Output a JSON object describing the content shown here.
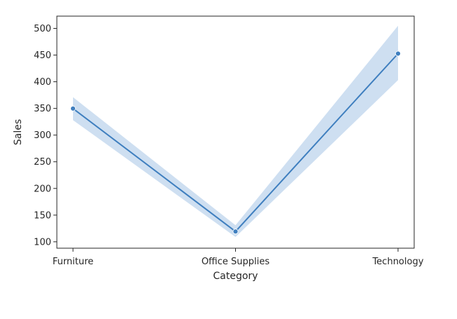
{
  "chart_data": {
    "type": "line",
    "title": "",
    "xlabel": "Category",
    "ylabel": "Sales",
    "categories": [
      "Furniture",
      "Office Supplies",
      "Technology"
    ],
    "series": [
      {
        "values": [
          349.8,
          119.3,
          452.7
        ],
        "ci_lower": [
          328,
          109,
          403
        ],
        "ci_upper": [
          371,
          131,
          505
        ],
        "color": "#3f7fbf",
        "band_color": "#c6d9ee",
        "marker": "circle"
      }
    ],
    "ylim": [
      88,
      523
    ],
    "yticks": [
      100,
      150,
      200,
      250,
      300,
      350,
      400,
      450,
      500
    ],
    "grid": false,
    "legend": "none"
  }
}
